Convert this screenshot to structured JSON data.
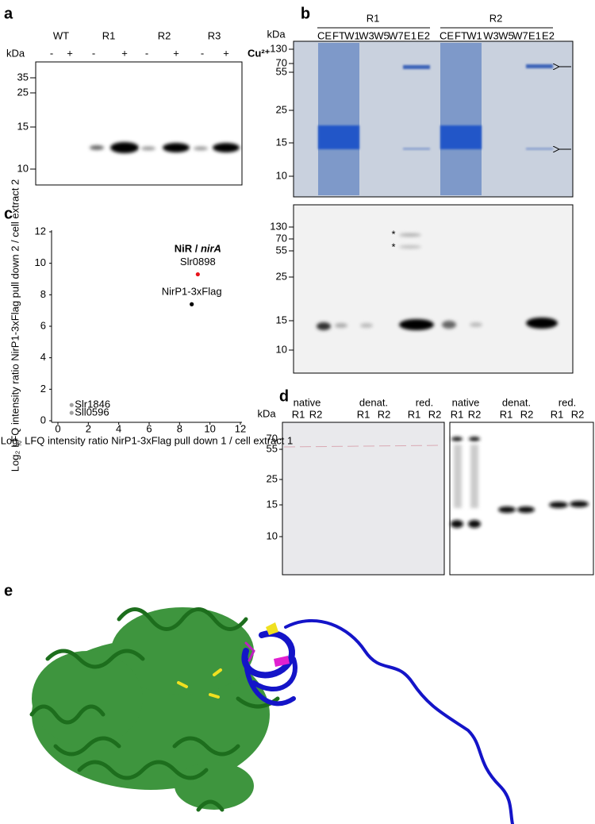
{
  "panel_a": {
    "label": "a",
    "samples": [
      "WT",
      "R1",
      "R2",
      "R3"
    ],
    "treatments": [
      "-",
      "+",
      "-",
      "+",
      "-",
      "+",
      "-",
      "+"
    ],
    "ion": "Cu²⁺",
    "unit": "kDa",
    "markers": [
      35,
      25,
      15,
      10
    ]
  },
  "panel_b": {
    "label": "b",
    "groups": [
      "R1",
      "R2"
    ],
    "unit": "kDa",
    "lanes": [
      "CE",
      "FT",
      "W1",
      "W3",
      "W5",
      "W7",
      "E1",
      "E2",
      "CE",
      "FT",
      "W1",
      "W3",
      "W5",
      "W7",
      "E1",
      "E2"
    ],
    "markers_top": [
      130,
      70,
      55,
      25,
      15,
      10
    ],
    "markers_bottom": [
      130,
      70,
      55,
      25,
      15,
      10
    ],
    "asterisks": [
      "*",
      "*"
    ]
  },
  "panel_c": {
    "label": "c",
    "type": "scatter",
    "x_label": "Log₂ LFQ intensity ratio NirP1-3xFlag pull down 1 / cell extract 1",
    "y_label": "Log₂ LFQ intensity ratio NirP1-3xFlag pull down 2 / cell extract 2",
    "xlim": [
      0,
      12
    ],
    "ylim": [
      0,
      12
    ],
    "xticks": [
      0,
      2,
      4,
      6,
      8,
      10,
      12
    ],
    "yticks": [
      0,
      2,
      4,
      6,
      8,
      10,
      12
    ],
    "points": [
      {
        "label_parts": [
          "NiR",
          "/",
          "nirA"
        ],
        "label": "Slr0898",
        "color": "#e8131b",
        "x": 9.2,
        "y": 9.3
      },
      {
        "label": "NirP1-3xFlag",
        "color": "#000000",
        "x": 8.8,
        "y": 7.4
      },
      {
        "label": "Slr1846",
        "color": "#a0a0a0",
        "x": 0.9,
        "y": 1.0
      },
      {
        "label": "Sll0596",
        "color": "#a0a0a0",
        "x": 0.9,
        "y": 0.5
      }
    ]
  },
  "panel_d": {
    "label": "d",
    "conditions": [
      "native",
      "denat.",
      "red.",
      "native",
      "denat.",
      "red."
    ],
    "replicates": [
      "R1",
      "R2",
      "R1",
      "R2",
      "R1",
      "R2",
      "R1",
      "R2",
      "R1",
      "R2",
      "R1",
      "R2"
    ],
    "unit": "kDa",
    "markers": [
      70,
      55,
      25,
      15,
      10
    ]
  },
  "panel_e": {
    "label": "e"
  }
}
